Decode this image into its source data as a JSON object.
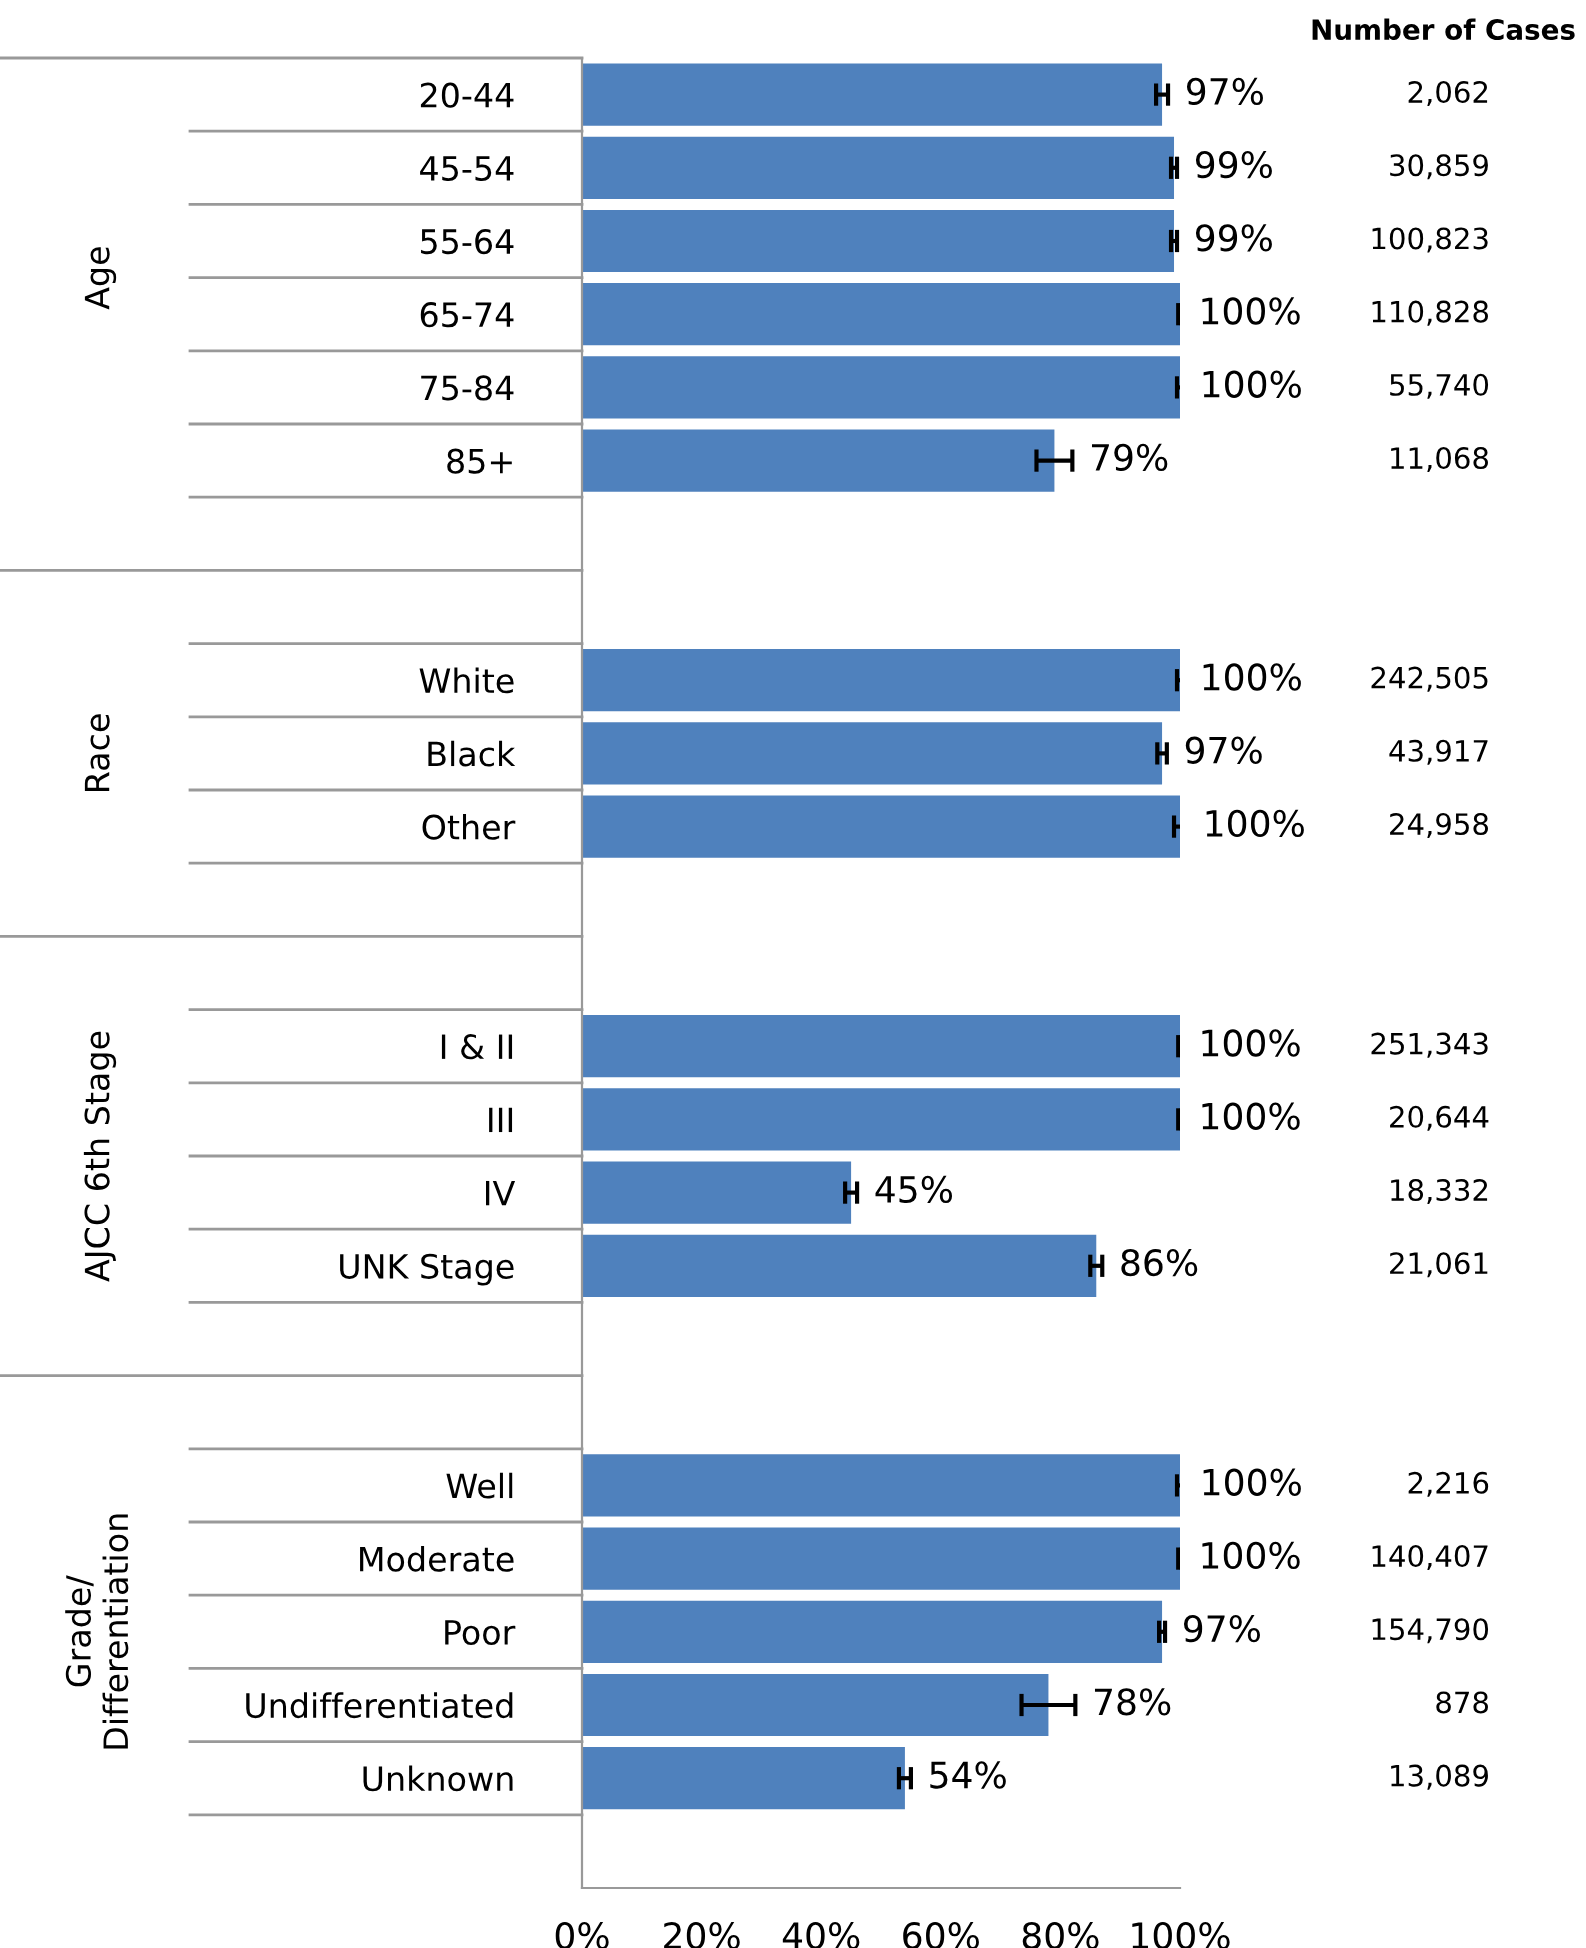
{
  "chart_data": {
    "type": "bar",
    "orientation": "horizontal",
    "categories": [
      "20-44",
      "45-54",
      "55-64",
      "65-74",
      "75-84",
      "85+",
      null,
      null,
      "White",
      "Black",
      "Other",
      null,
      null,
      "I & II",
      "III",
      "IV",
      "UNK Stage",
      null,
      null,
      "Well",
      "Moderate",
      "Poor",
      "Undifferentiated",
      "Unknown",
      null
    ],
    "series": [
      {
        "color": "#4f81bd",
        "values": [
          97,
          99,
          99,
          100,
          100,
          79,
          null,
          null,
          100,
          97,
          100,
          null,
          null,
          100,
          100,
          45,
          86,
          null,
          null,
          100,
          100,
          97,
          78,
          54,
          null
        ],
        "errors": [
          1,
          0.5,
          0.5,
          0.3,
          0.5,
          3,
          null,
          null,
          0.5,
          0.8,
          1,
          null,
          null,
          0.3,
          0.3,
          1,
          1,
          null,
          null,
          0.5,
          0.3,
          0.5,
          4.5,
          1,
          null
        ],
        "value_labels": [
          "97%",
          "99%",
          "99%",
          "100%",
          "100%",
          "79%",
          null,
          null,
          "100%",
          "97%",
          "100%",
          null,
          null,
          "100%",
          "100%",
          "45%",
          "86%",
          null,
          null,
          "100%",
          "100%",
          "97%",
          "78%",
          "54%",
          null
        ]
      }
    ],
    "xlim": [
      0,
      100
    ],
    "xticks": [
      {
        "value": 0,
        "label": "0%"
      },
      {
        "value": 20,
        "label": "20%"
      },
      {
        "value": 40,
        "label": "40%"
      },
      {
        "value": 60,
        "label": "60%"
      },
      {
        "value": 80,
        "label": "80%"
      },
      {
        "value": 100,
        "label": "100%"
      }
    ],
    "grid": false,
    "legend": false,
    "annotations": [
      "Number of Cases",
      "2,062",
      "30,859",
      "100,823",
      "110,828",
      "55,740",
      "11,068",
      "242,505",
      "43,917",
      "24,958",
      "251,343",
      "20,644",
      "18,332",
      "21,061",
      "2,216",
      "140,407",
      "154,790",
      "878",
      "13,089",
      "Age",
      "Race",
      "AJCC 6th Stage",
      "Grade/\nDifferentiation"
    ]
  }
}
